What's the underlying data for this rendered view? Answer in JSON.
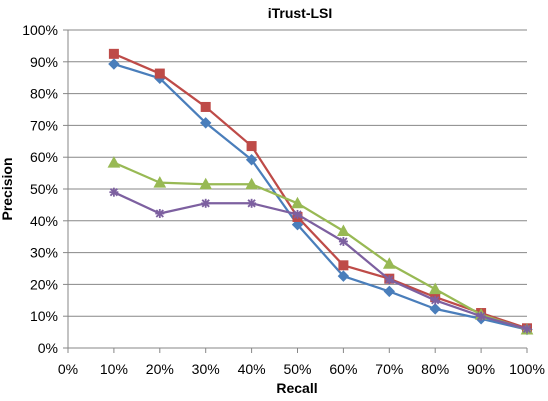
{
  "chart_data": {
    "type": "line",
    "title": "iTrust-LSI",
    "xlabel": "Recall",
    "ylabel": "Precision",
    "x": [
      0.1,
      0.2,
      0.3,
      0.4,
      0.5,
      0.6,
      0.7,
      0.8,
      0.9,
      1.0
    ],
    "xlim": [
      0,
      1
    ],
    "ylim": [
      0,
      1
    ],
    "x_ticks": [
      "0%",
      "10%",
      "20%",
      "30%",
      "40%",
      "50%",
      "60%",
      "70%",
      "80%",
      "90%",
      "100%"
    ],
    "y_ticks": [
      "0%",
      "10%",
      "20%",
      "30%",
      "40%",
      "50%",
      "60%",
      "70%",
      "80%",
      "90%",
      "100%"
    ],
    "grid": "horizontal",
    "legend": "none",
    "series": [
      {
        "color": "#4a7ebb",
        "marker": "diamond",
        "values": [
          0.893,
          0.848,
          0.708,
          0.592,
          0.388,
          0.226,
          0.178,
          0.123,
          0.092,
          0.058
        ]
      },
      {
        "color": "#be4b48",
        "marker": "square",
        "values": [
          0.925,
          0.863,
          0.758,
          0.635,
          0.412,
          0.26,
          0.218,
          0.16,
          0.11,
          0.062
        ]
      },
      {
        "color": "#98b954",
        "marker": "triangle",
        "values": [
          0.583,
          0.52,
          0.515,
          0.515,
          0.455,
          0.368,
          0.265,
          0.185,
          0.105,
          0.058
        ]
      },
      {
        "color": "#7d60a0",
        "marker": "star",
        "values": [
          0.49,
          0.423,
          0.455,
          0.455,
          0.42,
          0.335,
          0.215,
          0.15,
          0.1,
          0.06
        ]
      }
    ]
  }
}
